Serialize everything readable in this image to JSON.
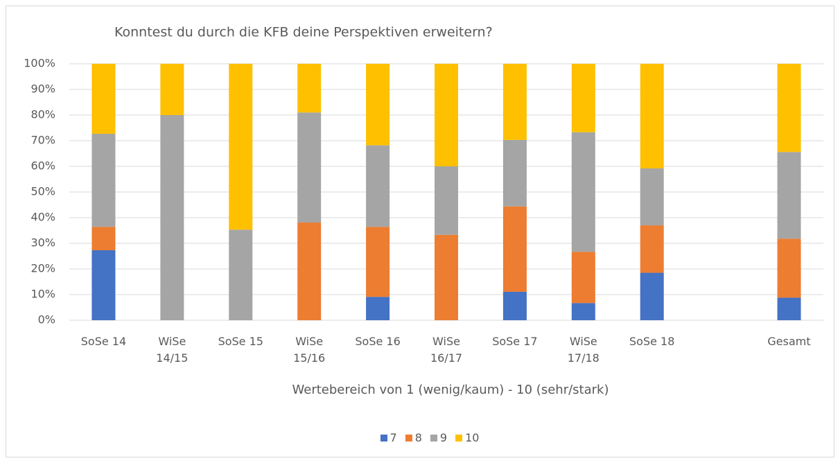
{
  "chart_data": {
    "type": "stacked_bar",
    "title": "Konntest du durch die KFB deine Perspektiven erweitern?",
    "x_label": "Wertebereich von 1 (wenig/kaum) - 10 (sehr/stark)",
    "categories": [
      "SoSe 14",
      "WiSe\n14/15",
      "SoSe 15",
      "WiSe\n15/16",
      "SoSe 16",
      "WiSe\n16/17",
      "SoSe 17",
      "WiSe\n17/18",
      "SoSe 18",
      null,
      "Gesamt"
    ],
    "series": [
      {
        "name": "7",
        "color": "#4472c4",
        "values": [
          27.3,
          0,
          0,
          0,
          9.1,
          0,
          11.1,
          6.7,
          18.5,
          null,
          8.8
        ]
      },
      {
        "name": "8",
        "color": "#ed7d31",
        "values": [
          9.1,
          0,
          0,
          38.1,
          27.3,
          33.3,
          33.3,
          20,
          18.5,
          null,
          23
        ]
      },
      {
        "name": "9",
        "color": "#a5a5a5",
        "values": [
          36.3,
          80,
          35.3,
          42.9,
          31.8,
          26.7,
          25.9,
          46.6,
          22.2,
          null,
          33.8
        ]
      },
      {
        "name": "10",
        "color": "#ffc000",
        "values": [
          27.3,
          20,
          64.7,
          19,
          31.8,
          40,
          29.7,
          26.7,
          40.8,
          null,
          34.4
        ]
      }
    ],
    "ylim": [
      0,
      100
    ],
    "yticks": [
      {
        "value": 0,
        "label": "0%"
      },
      {
        "value": 10,
        "label": "10%"
      },
      {
        "value": 20,
        "label": "20%"
      },
      {
        "value": 30,
        "label": "30%"
      },
      {
        "value": 40,
        "label": "40%"
      },
      {
        "value": 50,
        "label": "50%"
      },
      {
        "value": 60,
        "label": "60%"
      },
      {
        "value": 70,
        "label": "70%"
      },
      {
        "value": 80,
        "label": "80%"
      },
      {
        "value": 90,
        "label": "90%"
      },
      {
        "value": 100,
        "label": "100%"
      }
    ],
    "grid": true,
    "legend": "bottom"
  }
}
